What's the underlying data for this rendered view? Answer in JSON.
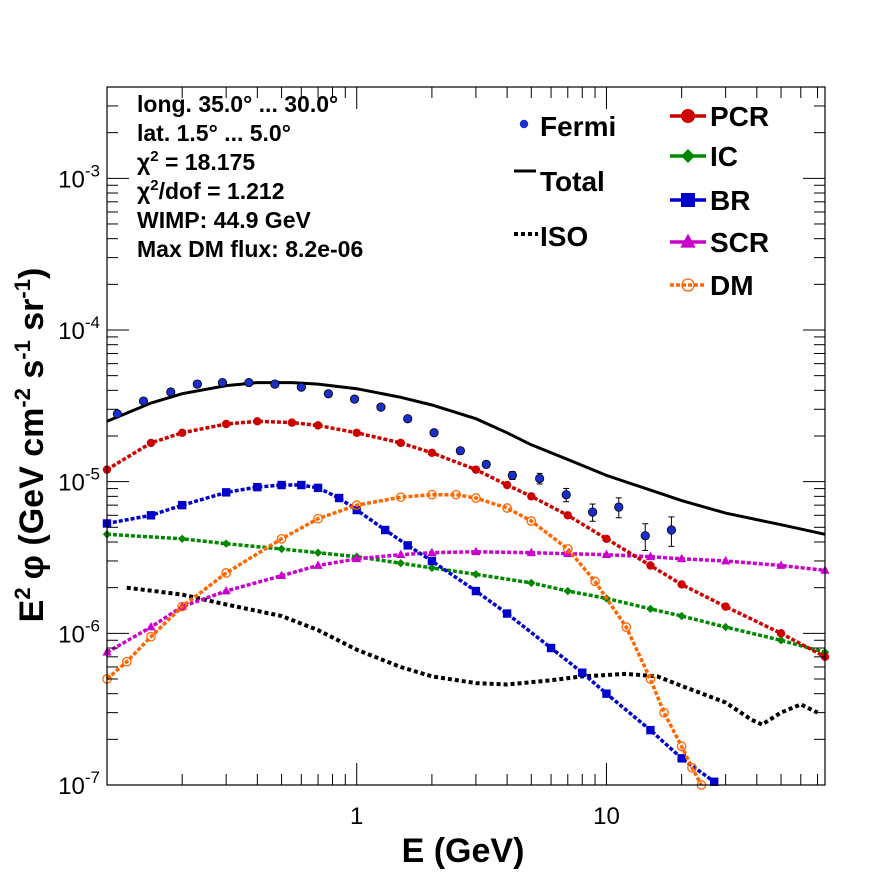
{
  "chart_data": {
    "type": "line",
    "title": "",
    "xlabel": "E (GeV)",
    "ylabel_parts": {
      "e2": "E",
      "e2_sup": "2",
      "phi": "φ (GeV cm",
      "cm_sup": "-2",
      "s": " s",
      "s_sup": "-1",
      "sr": " sr",
      "sr_sup": "-1",
      "close": ")"
    },
    "x_scale": "log",
    "y_scale": "log",
    "xlim": [
      0.1,
      75
    ],
    "ylim": [
      1e-07,
      0.004
    ],
    "x_ticks": [
      {
        "value": 1,
        "label": "1"
      },
      {
        "value": 10,
        "label": "10"
      }
    ],
    "y_ticks": [
      {
        "value": 1e-07,
        "base": "10",
        "exp": "-7"
      },
      {
        "value": 1e-06,
        "base": "10",
        "exp": "-6"
      },
      {
        "value": 1e-05,
        "base": "10",
        "exp": "-5"
      },
      {
        "value": 0.0001,
        "base": "10",
        "exp": "-4"
      },
      {
        "value": 0.001,
        "base": "10",
        "exp": "-3"
      }
    ],
    "info": {
      "long": "long. 35.0° ... 30.0°",
      "lat": "lat. 1.5° ... 5.0°",
      "chi2_prefix": "χ",
      "chi2_sup": "2",
      "chi2_value": " = 18.175",
      "chi2dof_prefix": "χ",
      "chi2dof_sup": "2",
      "chi2dof_value": "/dof = 1.212",
      "wimp": "WIMP: 44.9 GeV",
      "maxdm": "Max DM flux: 8.2e-06"
    },
    "legend_placement": "top-right",
    "fermi": {
      "name": "Fermi",
      "color": "#1a2ecc",
      "x": [
        0.11,
        0.14,
        0.18,
        0.23,
        0.29,
        0.37,
        0.47,
        0.6,
        0.77,
        0.98,
        1.25,
        1.6,
        2.04,
        2.6,
        3.3,
        4.2,
        5.4,
        6.9,
        8.8,
        11.2,
        14.3,
        18.2,
        23.3,
        29.7,
        37.9,
        48.4,
        61.8
      ],
      "y": [
        2.8e-05,
        3.4e-05,
        3.9e-05,
        4.4e-05,
        4.5e-05,
        4.5e-05,
        4.4e-05,
        4.2e-05,
        3.8e-05,
        3.5e-05,
        3.1e-05,
        2.6e-05,
        2.1e-05,
        1.6e-05,
        1.3e-05,
        1.1e-05,
        1.05e-05,
        8.2e-06,
        6.3e-06,
        6.8e-06,
        4.4e-06,
        4.8e-06,
        null,
        null,
        null,
        null,
        null
      ],
      "yerr_rel": [
        0.03,
        0.03,
        0.03,
        0.03,
        0.03,
        0.03,
        0.03,
        0.03,
        0.03,
        0.03,
        0.03,
        0.04,
        0.04,
        0.05,
        0.05,
        0.06,
        0.08,
        0.1,
        0.13,
        0.15,
        0.2,
        0.22,
        0,
        0,
        0,
        0,
        0
      ]
    },
    "series": [
      {
        "name": "Total",
        "color": "#000000",
        "style": "line",
        "x": [
          0.1,
          0.15,
          0.2,
          0.3,
          0.4,
          0.55,
          0.7,
          1.0,
          1.5,
          2.0,
          3.0,
          4.0,
          5.0,
          7.0,
          10.0,
          15.0,
          20.0,
          30.0,
          50.0,
          75.0
        ],
        "y": [
          2.5e-05,
          3.3e-05,
          3.8e-05,
          4.3e-05,
          4.5e-05,
          4.5e-05,
          4.4e-05,
          4.1e-05,
          3.6e-05,
          3.2e-05,
          2.6e-05,
          2.1e-05,
          1.75e-05,
          1.4e-05,
          1.1e-05,
          8.8e-06,
          7.5e-06,
          6.2e-06,
          5.2e-06,
          4.5e-06
        ]
      },
      {
        "name": "ISO",
        "color": "#000000",
        "style": "dotted",
        "x": [
          0.12,
          0.2,
          0.3,
          0.5,
          0.7,
          1.0,
          1.5,
          2.0,
          3.0,
          4.0,
          6.0,
          8.0,
          12.0,
          16.0,
          20.0,
          30.0,
          38.0,
          42.0,
          50.0,
          60.0,
          70.0
        ],
        "y": [
          2e-06,
          1.8e-06,
          1.55e-06,
          1.3e-06,
          1.05e-06,
          7.8e-07,
          6e-07,
          5.2e-07,
          4.7e-07,
          4.6e-07,
          4.9e-07,
          5.2e-07,
          5.4e-07,
          5.2e-07,
          4.5e-07,
          3.5e-07,
          2.7e-07,
          2.5e-07,
          3e-07,
          3.4e-07,
          3e-07
        ]
      },
      {
        "name": "PCR",
        "color": "#cc0000",
        "style": "markers-circle",
        "x": [
          0.1,
          0.15,
          0.2,
          0.3,
          0.4,
          0.55,
          0.7,
          1.0,
          1.5,
          2.0,
          3.0,
          4.0,
          5.0,
          7.0,
          10.0,
          15.0,
          20.0,
          30.0,
          50.0,
          75.0
        ],
        "y": [
          1.2e-05,
          1.8e-05,
          2.1e-05,
          2.4e-05,
          2.5e-05,
          2.45e-05,
          2.35e-05,
          2.1e-05,
          1.8e-05,
          1.55e-05,
          1.2e-05,
          9.5e-06,
          8e-06,
          6e-06,
          4.2e-06,
          2.8e-06,
          2.1e-06,
          1.5e-06,
          1e-06,
          7e-07
        ]
      },
      {
        "name": "IC",
        "color": "#008800",
        "style": "markers-diamond",
        "x": [
          0.1,
          0.2,
          0.3,
          0.5,
          0.7,
          1.0,
          1.5,
          2.0,
          3.0,
          5.0,
          7.0,
          10.0,
          15.0,
          20.0,
          30.0,
          50.0,
          75.0
        ],
        "y": [
          4.5e-06,
          4.2e-06,
          3.9e-06,
          3.6e-06,
          3.4e-06,
          3.2e-06,
          2.9e-06,
          2.7e-06,
          2.45e-06,
          2.15e-06,
          1.9e-06,
          1.7e-06,
          1.45e-06,
          1.3e-06,
          1.1e-06,
          9e-07,
          7.5e-07
        ]
      },
      {
        "name": "BR",
        "color": "#0000cc",
        "style": "markers-square",
        "x": [
          0.1,
          0.15,
          0.2,
          0.3,
          0.4,
          0.5,
          0.6,
          0.7,
          0.85,
          1.0,
          1.3,
          1.6,
          2.0,
          3.0,
          4.0,
          6.0,
          8.0,
          10.0,
          15.0,
          20.0,
          27.0
        ],
        "y": [
          5.3e-06,
          6e-06,
          7e-06,
          8.5e-06,
          9.2e-06,
          9.5e-06,
          9.5e-06,
          9.1e-06,
          7.8e-06,
          6.5e-06,
          4.8e-06,
          3.8e-06,
          3e-06,
          1.9e-06,
          1.35e-06,
          8e-07,
          5.5e-07,
          4e-07,
          2.3e-07,
          1.5e-07,
          1.05e-07
        ]
      },
      {
        "name": "SCR",
        "color": "#cc00cc",
        "style": "markers-triangle",
        "x": [
          0.1,
          0.15,
          0.2,
          0.3,
          0.5,
          0.7,
          1.0,
          1.5,
          2.0,
          3.0,
          5.0,
          7.0,
          10.0,
          15.0,
          20.0,
          30.0,
          50.0,
          75.0
        ],
        "y": [
          7.5e-07,
          1.1e-06,
          1.5e-06,
          1.9e-06,
          2.4e-06,
          2.8e-06,
          3.1e-06,
          3.3e-06,
          3.4e-06,
          3.45e-06,
          3.4e-06,
          3.35e-06,
          3.3e-06,
          3.2e-06,
          3.1e-06,
          3e-06,
          2.8e-06,
          2.6e-06
        ]
      },
      {
        "name": "DM",
        "color": "#ff6600",
        "style": "markers-opencircle",
        "x": [
          0.1,
          0.12,
          0.15,
          0.2,
          0.3,
          0.5,
          0.7,
          1.0,
          1.5,
          2.0,
          2.5,
          3.0,
          4.0,
          5.0,
          7.0,
          9.0,
          12.0,
          15.0,
          17.0,
          20.0,
          22.0,
          24.0
        ],
        "y": [
          5e-07,
          6.5e-07,
          9.5e-07,
          1.5e-06,
          2.5e-06,
          4.2e-06,
          5.7e-06,
          7e-06,
          7.9e-06,
          8.2e-06,
          8.2e-06,
          7.8e-06,
          6.7e-06,
          5.5e-06,
          3.6e-06,
          2.2e-06,
          1.1e-06,
          5e-07,
          3e-07,
          1.8e-07,
          1.3e-07,
          1e-07
        ]
      }
    ],
    "legend_fermi_col": [
      {
        "key": "Fermi",
        "label": "Fermi"
      },
      {
        "key": "Total",
        "label": "Total"
      },
      {
        "key": "ISO",
        "label": "ISO"
      }
    ],
    "legend_components_col": [
      {
        "key": "PCR",
        "label": "PCR"
      },
      {
        "key": "IC",
        "label": "IC"
      },
      {
        "key": "BR",
        "label": "BR"
      },
      {
        "key": "SCR",
        "label": "SCR"
      },
      {
        "key": "DM",
        "label": "DM"
      }
    ]
  }
}
